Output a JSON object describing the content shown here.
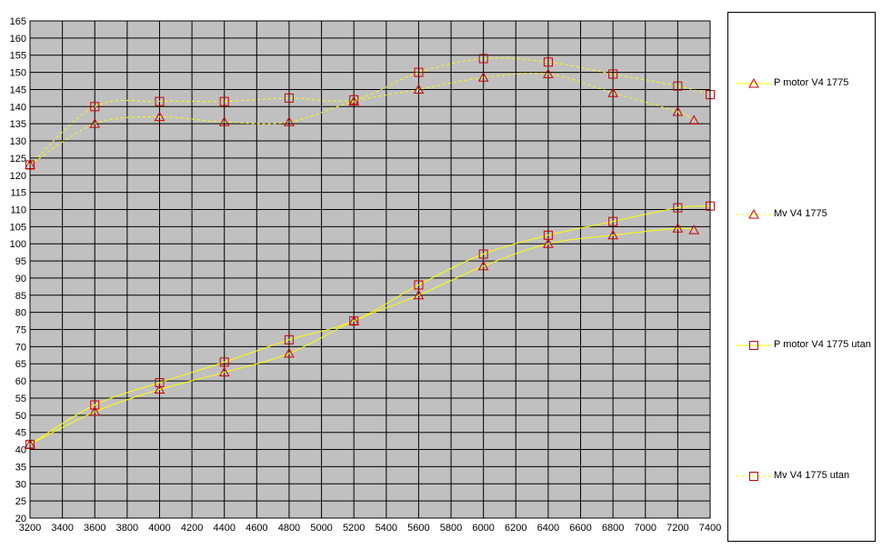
{
  "chart_data": {
    "type": "line",
    "title": "",
    "xlabel": "",
    "ylabel": "",
    "xlim": [
      3200,
      7400
    ],
    "ylim": [
      20,
      165
    ],
    "x_ticks": [
      3200,
      3400,
      3600,
      3800,
      4000,
      4200,
      4400,
      4600,
      4800,
      5000,
      5200,
      5400,
      5600,
      5800,
      6000,
      6200,
      6400,
      6600,
      6800,
      7000,
      7200,
      7400
    ],
    "y_ticks": [
      20,
      25,
      30,
      35,
      40,
      45,
      50,
      55,
      60,
      65,
      70,
      75,
      80,
      85,
      90,
      95,
      100,
      105,
      110,
      115,
      120,
      125,
      130,
      135,
      140,
      145,
      150,
      155,
      160,
      165
    ],
    "grid": true,
    "plot_background": "#c0c0c0",
    "legend_position": "right",
    "series": [
      {
        "name": "P motor V4 1775",
        "marker": "triangle",
        "line_style": "solid",
        "color": "#ffff00",
        "marker_color": "#cc0000",
        "x": [
          3200,
          3600,
          4000,
          4400,
          4800,
          5200,
          5600,
          6000,
          6400,
          6800,
          7200,
          7300
        ],
        "y": [
          41.5,
          51,
          57.5,
          62.5,
          68,
          77.5,
          85,
          93.5,
          100,
          102.5,
          104.5,
          104
        ]
      },
      {
        "name": "Mv V4 1775",
        "marker": "triangle",
        "line_style": "dashed",
        "color": "#ffff00",
        "marker_color": "#cc0000",
        "x": [
          3200,
          3600,
          4000,
          4400,
          4800,
          5200,
          5600,
          6000,
          6400,
          6800,
          7200,
          7300
        ],
        "y": [
          123,
          135,
          137,
          135.5,
          135.5,
          141.5,
          145,
          148.5,
          149.5,
          144,
          138.5,
          136
        ]
      },
      {
        "name": "P motor V4 1775 utan",
        "marker": "square",
        "line_style": "solid",
        "color": "#ffff00",
        "marker_color": "#cc0000",
        "x": [
          3200,
          3600,
          4000,
          4400,
          4800,
          5200,
          5600,
          6000,
          6400,
          6800,
          7200,
          7400
        ],
        "y": [
          41.5,
          53,
          59.5,
          65.5,
          72,
          77.5,
          88,
          97,
          102.5,
          106.5,
          110.5,
          111
        ]
      },
      {
        "name": "Mv V4 1775 utan",
        "marker": "square",
        "line_style": "dashed",
        "color": "#ffff00",
        "marker_color": "#cc0000",
        "x": [
          3200,
          3600,
          4000,
          4400,
          4800,
          5200,
          5600,
          6000,
          6400,
          6800,
          7200,
          7400
        ],
        "y": [
          123,
          140,
          141.5,
          141.5,
          142.5,
          142,
          150,
          154,
          153,
          149.5,
          146,
          143.5
        ]
      }
    ]
  }
}
